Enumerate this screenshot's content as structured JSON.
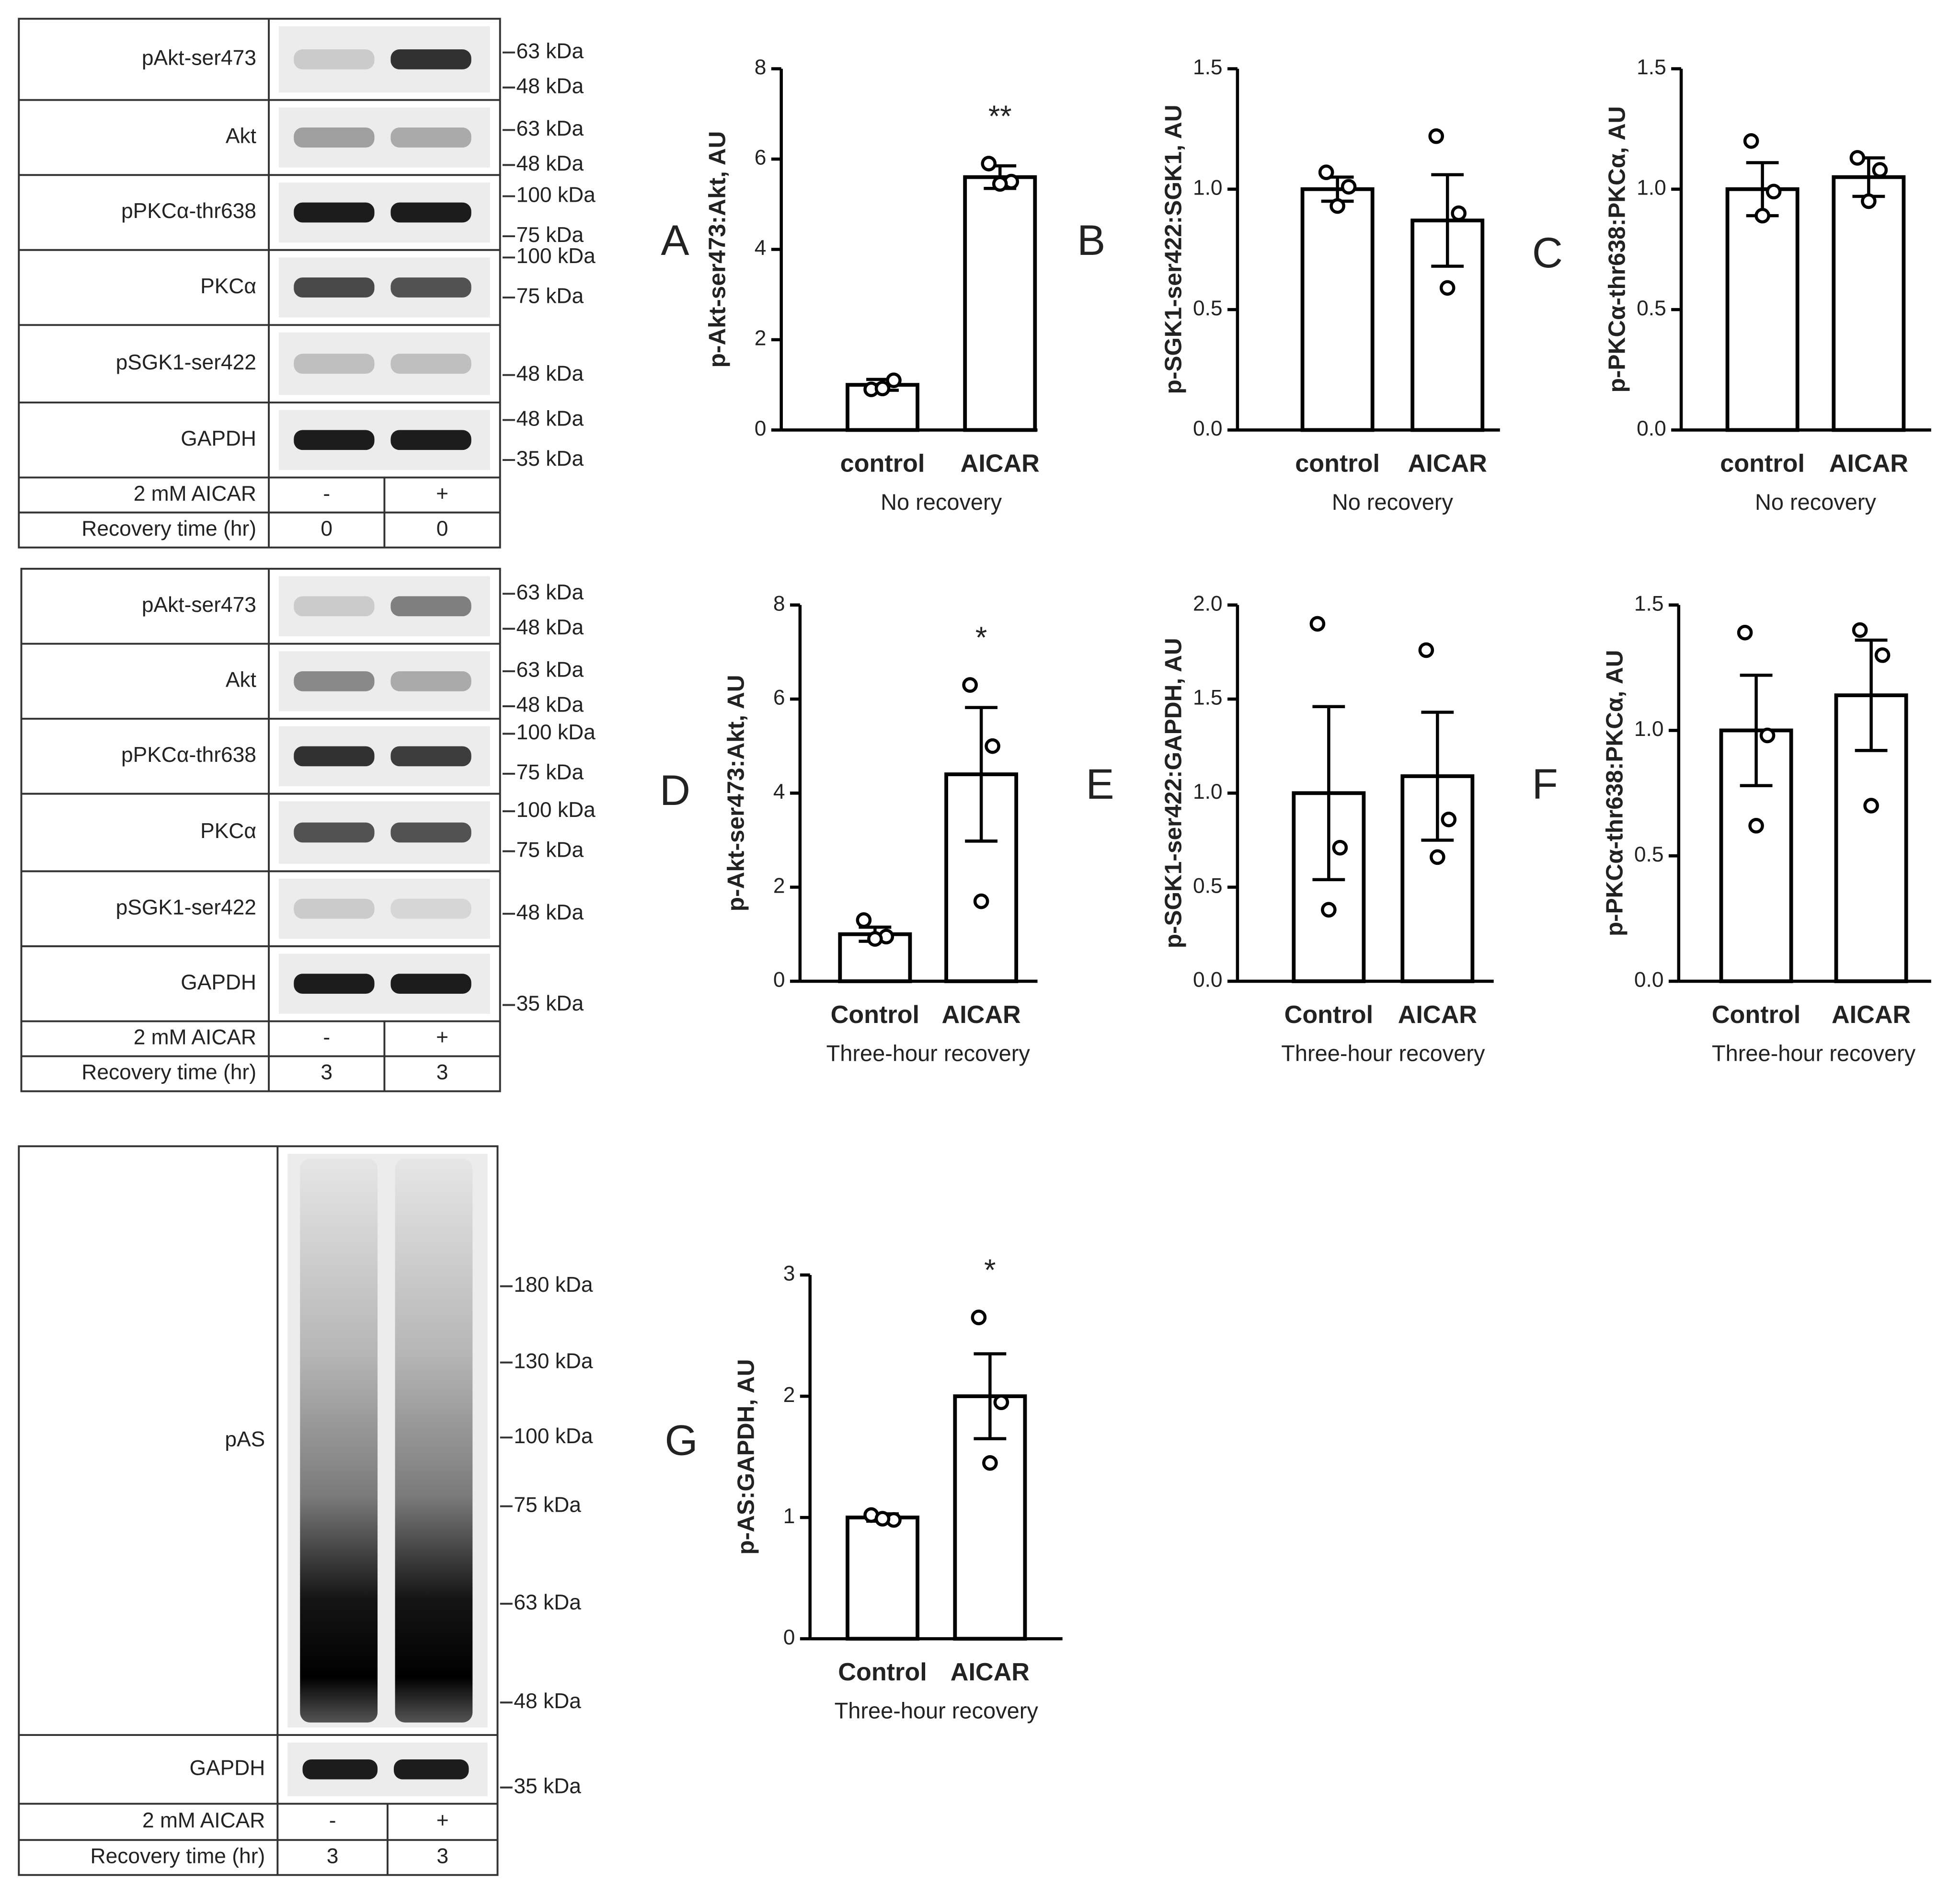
{
  "chart_data": [
    {
      "type": "bar",
      "panel": "A",
      "ylabel": "p-Akt-ser473:Akt, AU",
      "xlabel": "No recovery",
      "categories": [
        "control",
        "AICAR"
      ],
      "values": [
        1.0,
        5.6
      ],
      "errors": [
        0.12,
        0.25
      ],
      "points": [
        [
          0.9,
          1.1,
          0.92
        ],
        [
          5.9,
          5.5,
          5.45
        ]
      ],
      "annotation": "**",
      "ylim": [
        0,
        8
      ],
      "yticks": [
        0,
        2,
        4,
        6,
        8
      ],
      "color": "#ffffff"
    },
    {
      "type": "bar",
      "panel": "B",
      "ylabel": "p-SGK1-ser422:SGK1, AU",
      "xlabel": "No recovery",
      "categories": [
        "control",
        "AICAR"
      ],
      "values": [
        1.0,
        0.87
      ],
      "errors": [
        0.05,
        0.19
      ],
      "points": [
        [
          1.07,
          1.01,
          0.93
        ],
        [
          1.22,
          0.9,
          0.59
        ]
      ],
      "ylim": [
        0,
        1.5
      ],
      "yticks": [
        {
          "value": 0,
          "label": "0.0"
        },
        {
          "value": 0.5,
          "label": "0.5"
        },
        {
          "value": 1,
          "label": "1.0"
        },
        {
          "value": 1.5,
          "label": "1.5"
        }
      ],
      "color": "#ffffff"
    },
    {
      "type": "bar",
      "panel": "C",
      "ylabel": "p-PKCα-thr638:PKCα, AU",
      "xlabel": "No recovery",
      "categories": [
        "control",
        "AICAR"
      ],
      "values": [
        1.0,
        1.05
      ],
      "errors": [
        0.11,
        0.08
      ],
      "points": [
        [
          1.2,
          0.99,
          0.89
        ],
        [
          1.13,
          1.08,
          0.95
        ]
      ],
      "ylim": [
        0,
        1.5
      ],
      "yticks": [
        {
          "value": 0,
          "label": "0.0"
        },
        {
          "value": 0.5,
          "label": "0.5"
        },
        {
          "value": 1,
          "label": "1.0"
        },
        {
          "value": 1.5,
          "label": "1.5"
        }
      ],
      "color": "#ffffff"
    },
    {
      "type": "bar",
      "panel": "D",
      "ylabel": "p-Akt-ser473:Akt, AU",
      "xlabel": "Three-hour recovery",
      "categories": [
        "Control",
        "AICAR"
      ],
      "values": [
        1.0,
        4.4
      ],
      "errors": [
        0.15,
        1.42
      ],
      "points": [
        [
          1.3,
          0.95,
          0.9
        ],
        [
          6.3,
          5.0,
          1.7
        ]
      ],
      "annotation": "*",
      "ylim": [
        0,
        8
      ],
      "yticks": [
        0,
        2,
        4,
        6,
        8
      ],
      "color": "#ffffff"
    },
    {
      "type": "bar",
      "panel": "E",
      "ylabel": "p-SGK1-ser422:GAPDH, AU",
      "xlabel": "Three-hour recovery",
      "categories": [
        "Control",
        "AICAR"
      ],
      "values": [
        1.0,
        1.09
      ],
      "errors": [
        0.46,
        0.34
      ],
      "points": [
        [
          1.9,
          0.71,
          0.38
        ],
        [
          1.76,
          0.86,
          0.66
        ]
      ],
      "ylim": [
        0,
        2
      ],
      "yticks": [
        {
          "value": 0,
          "label": "0.0"
        },
        {
          "value": 0.5,
          "label": "0.5"
        },
        {
          "value": 1,
          "label": "1.0"
        },
        {
          "value": 1.5,
          "label": "1.5"
        },
        {
          "value": 2,
          "label": "2.0"
        }
      ],
      "color": "#ffffff"
    },
    {
      "type": "bar",
      "panel": "F",
      "ylabel": "p-PKCα-thr638:PKCα, AU",
      "xlabel": "Three-hour recovery",
      "categories": [
        "Control",
        "AICAR"
      ],
      "values": [
        1.0,
        1.14
      ],
      "errors": [
        0.22,
        0.22
      ],
      "points": [
        [
          1.39,
          0.98,
          0.62
        ],
        [
          1.4,
          1.3,
          0.7
        ]
      ],
      "ylim": [
        0,
        1.5
      ],
      "yticks": [
        {
          "value": 0,
          "label": "0.0"
        },
        {
          "value": 0.5,
          "label": "0.5"
        },
        {
          "value": 1,
          "label": "1.0"
        },
        {
          "value": 1.5,
          "label": "1.5"
        }
      ],
      "color": "#ffffff"
    },
    {
      "type": "bar",
      "panel": "G",
      "ylabel": "p-AS:GAPDH, AU",
      "xlabel": "Three-hour recovery",
      "categories": [
        "Control",
        "AICAR"
      ],
      "values": [
        1.0,
        2.0
      ],
      "errors": [
        0.03,
        0.35
      ],
      "points": [
        [
          1.02,
          0.98,
          0.99
        ],
        [
          2.65,
          1.95,
          1.45
        ]
      ],
      "annotation": "*",
      "ylim": [
        0,
        3
      ],
      "yticks": [
        0,
        1,
        2,
        3
      ],
      "color": "#ffffff"
    }
  ],
  "blots": [
    {
      "rows": [
        {
          "label": "pAkt-ser473",
          "markers": [
            "63 kDa",
            "48 kDa"
          ]
        },
        {
          "label": "Akt",
          "markers": [
            "63 kDa",
            "48 kDa"
          ]
        },
        {
          "label": "pPKCα-thr638",
          "markers": [
            "100 kDa",
            "75 kDa"
          ]
        },
        {
          "label": "PKCα",
          "markers": [
            "100 kDa",
            "75 kDa"
          ]
        },
        {
          "label": "pSGK1-ser422",
          "markers": [
            "48 kDa"
          ]
        },
        {
          "label": "GAPDH",
          "markers": [
            "48 kDa",
            "35 kDa"
          ]
        }
      ],
      "conditions": [
        {
          "label": "2 mM AICAR",
          "values": [
            "-",
            "+"
          ]
        },
        {
          "label": "Recovery time (hr)",
          "values": [
            0,
            0
          ]
        }
      ]
    },
    {
      "rows": [
        {
          "label": "pAkt-ser473",
          "markers": [
            "63 kDa",
            "48 kDa"
          ]
        },
        {
          "label": "Akt",
          "markers": [
            "63 kDa",
            "48 kDa"
          ]
        },
        {
          "label": "pPKCα-thr638",
          "markers": [
            "100 kDa",
            "75 kDa"
          ]
        },
        {
          "label": "PKCα",
          "markers": [
            "100 kDa",
            "75 kDa"
          ]
        },
        {
          "label": "pSGK1-ser422",
          "markers": [
            "48 kDa"
          ]
        },
        {
          "label": "GAPDH",
          "markers": [
            "35 kDa"
          ]
        }
      ],
      "conditions": [
        {
          "label": "2 mM AICAR",
          "values": [
            "-",
            "+"
          ]
        },
        {
          "label": "Recovery time (hr)",
          "values": [
            3,
            3
          ]
        }
      ]
    },
    {
      "rows": [
        {
          "label": "pAS",
          "markers": [
            "180 kDa",
            "130 kDa",
            "100 kDa",
            "75 kDa",
            "63 kDa",
            "48 kDa"
          ]
        },
        {
          "label": "GAPDH",
          "markers": [
            "35 kDa"
          ]
        }
      ],
      "conditions": [
        {
          "label": "2 mM AICAR",
          "values": [
            "-",
            "+"
          ]
        },
        {
          "label": "Recovery time (hr)",
          "values": [
            3,
            3
          ]
        }
      ]
    }
  ]
}
